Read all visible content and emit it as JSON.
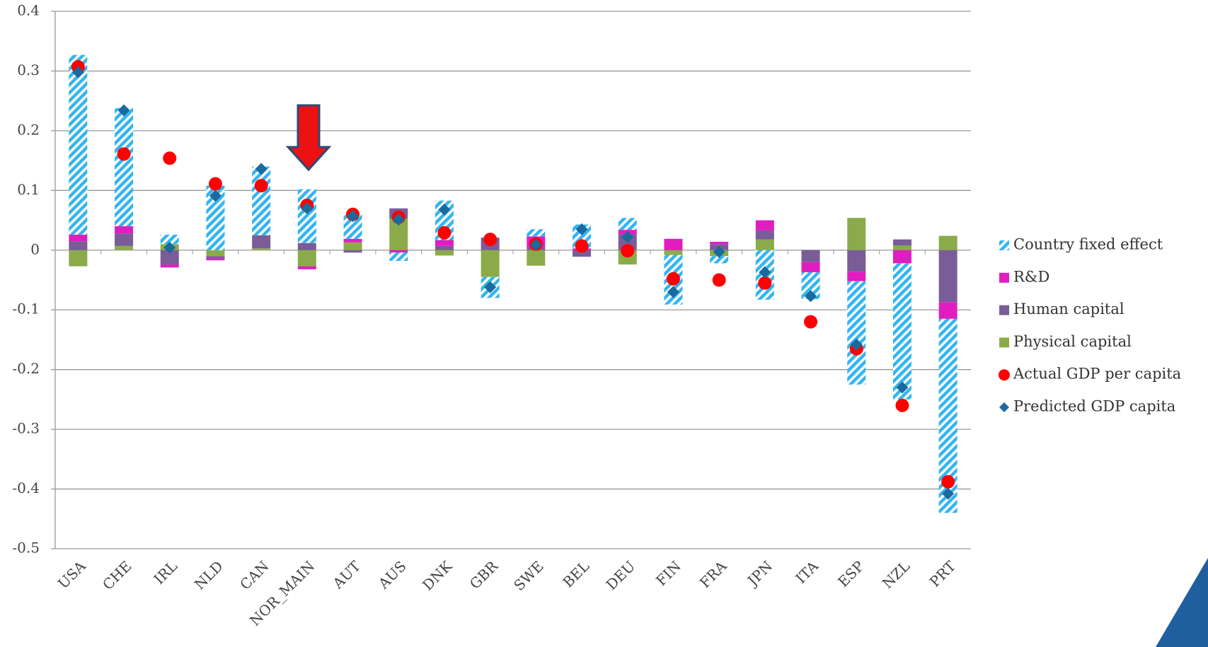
{
  "chart_data": {
    "type": "bar",
    "categories": [
      "USA",
      "CHE",
      "IRL",
      "NLD",
      "CAN",
      "NOR_MAIN",
      "AUT",
      "AUS",
      "DNK",
      "GBR",
      "SWE",
      "BEL",
      "DEU",
      "FIN",
      "FRA",
      "JPN",
      "ITA",
      "ESP",
      "NZL",
      "PRT"
    ],
    "series": [
      {
        "name": "Country fixed effect",
        "color": "#33b6ee",
        "hatched": true,
        "type": "bar",
        "values": [
          0.301,
          0.198,
          0.016,
          0.108,
          0.115,
          0.09,
          0.043,
          -0.014,
          0.066,
          -0.035,
          0.012,
          0.04,
          0.02,
          -0.083,
          -0.012,
          -0.083,
          -0.045,
          -0.173,
          -0.228,
          -0.325
        ]
      },
      {
        "name": "R&D",
        "color": "#e01ec0",
        "type": "bar",
        "values": [
          0.011,
          0.012,
          -0.005,
          -0.003,
          0.0,
          -0.005,
          0.006,
          -0.004,
          0.01,
          0.0,
          0.018,
          0.003,
          0.007,
          0.019,
          0.004,
          0.017,
          -0.017,
          -0.016,
          -0.022,
          -0.028
        ]
      },
      {
        "name": "Human capital",
        "color": "#7a5c99",
        "type": "bar",
        "values": [
          0.015,
          0.021,
          -0.024,
          -0.004,
          0.022,
          0.012,
          -0.004,
          0.017,
          0.007,
          0.021,
          0.005,
          -0.011,
          0.027,
          0.0,
          0.01,
          0.015,
          -0.02,
          -0.036,
          0.01,
          -0.087
        ]
      },
      {
        "name": "Physical capital",
        "color": "#8bab4b",
        "type": "bar",
        "values": [
          -0.027,
          0.007,
          0.01,
          -0.01,
          0.003,
          -0.027,
          0.013,
          0.053,
          -0.009,
          -0.045,
          -0.026,
          0.0,
          -0.024,
          -0.008,
          -0.01,
          0.018,
          0.0,
          0.054,
          0.008,
          0.024
        ]
      },
      {
        "name": "Actual GDP per capita",
        "color": "#ff0000",
        "type": "scatter",
        "marker": "circle",
        "values": [
          0.307,
          0.161,
          0.154,
          0.111,
          0.108,
          0.075,
          0.06,
          0.055,
          0.029,
          0.018,
          0.01,
          0.007,
          -0.001,
          -0.048,
          -0.05,
          -0.055,
          -0.12,
          -0.165,
          -0.26,
          -0.388
        ]
      },
      {
        "name": "Predicted GDP capita",
        "color": "#1a6a9e",
        "type": "scatter",
        "marker": "diamond",
        "values": [
          0.298,
          0.234,
          0.004,
          0.091,
          0.136,
          0.07,
          0.057,
          0.051,
          0.068,
          -0.062,
          0.009,
          0.035,
          0.022,
          -0.07,
          -0.003,
          -0.037,
          -0.077,
          -0.158,
          -0.23,
          -0.408
        ]
      }
    ],
    "ylim": [
      -0.5,
      0.4
    ],
    "yticks": [
      -0.5,
      -0.4,
      -0.3,
      -0.2,
      -0.1,
      0,
      0.1,
      0.2,
      0.3,
      0.4
    ],
    "grid": true,
    "legend": "right"
  }
}
